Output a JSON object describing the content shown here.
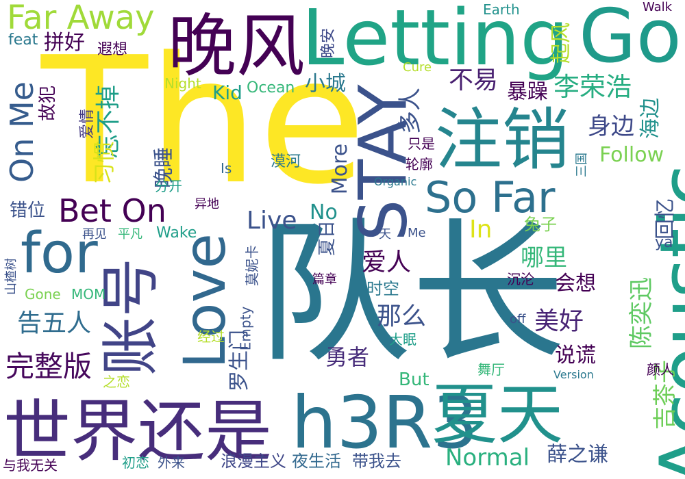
{
  "words": [
    {
      "text": "The",
      "color": "#fde725"
    },
    {
      "text": "队长",
      "color": "#2a768e"
    },
    {
      "text": "世界还是",
      "color": "#472d7b"
    },
    {
      "text": "h3R3",
      "color": "#2c738e"
    },
    {
      "text": "夏天",
      "color": "#21918c"
    },
    {
      "text": "Acoustic",
      "color": "#1f9e89"
    },
    {
      "text": "晚风",
      "color": "#440154"
    },
    {
      "text": "Letting",
      "color": "#20a486"
    },
    {
      "text": "Go",
      "color": "#1f9a8a"
    },
    {
      "text": "注销",
      "color": "#25858e"
    },
    {
      "text": "STAY",
      "color": "#3b528b"
    },
    {
      "text": "So Far",
      "color": "#2d708e"
    },
    {
      "text": "Love",
      "color": "#31688e"
    },
    {
      "text": "for",
      "color": "#306a8e"
    },
    {
      "text": "账号",
      "color": "#414487"
    },
    {
      "text": "Far Away",
      "color": "#a0da39"
    },
    {
      "text": "On Me",
      "color": "#365c8d"
    },
    {
      "text": "Bet On",
      "color": "#440154"
    },
    {
      "text": "李荣浩",
      "color": "#26ad81"
    },
    {
      "text": "完整版",
      "color": "#46085c"
    },
    {
      "text": "告五人",
      "color": "#2f6c8e"
    },
    {
      "text": "陈奕迅",
      "color": "#5ec962"
    },
    {
      "text": "吉茶子",
      "color": "#6ece58"
    },
    {
      "text": "美好",
      "color": "#482475"
    },
    {
      "text": "爱人",
      "color": "#440154"
    },
    {
      "text": "哪里",
      "color": "#35b779"
    },
    {
      "text": "身边",
      "color": "#3e4989"
    },
    {
      "text": "罗生门",
      "color": "#3b528b"
    },
    {
      "text": "那么",
      "color": "#3b528b"
    },
    {
      "text": "勇者",
      "color": "#472c7a"
    },
    {
      "text": "Normal",
      "color": "#2ab07f"
    },
    {
      "text": "In",
      "color": "#dde318"
    },
    {
      "text": "薛之谦",
      "color": "#3b528b"
    },
    {
      "text": "浪漫主义",
      "color": "#3f4788"
    },
    {
      "text": "夜生活",
      "color": "#31688e"
    },
    {
      "text": "带我去",
      "color": "#3b528b"
    },
    {
      "text": "Live",
      "color": "#3b528b"
    },
    {
      "text": "More",
      "color": "#3b528b"
    },
    {
      "text": "No",
      "color": "#21918c"
    },
    {
      "text": "Kid",
      "color": "#1f9e89"
    },
    {
      "text": "Ocean",
      "color": "#35b779"
    },
    {
      "text": "小城",
      "color": "#2a788e"
    },
    {
      "text": "不易",
      "color": "#481f70"
    },
    {
      "text": "多人",
      "color": "#3b528b"
    },
    {
      "text": "暴躁",
      "color": "#440154"
    },
    {
      "text": "忘不掉",
      "color": "#1f9e89"
    },
    {
      "text": "拼好",
      "color": "#440154"
    },
    {
      "text": "遐想",
      "color": "#440154"
    },
    {
      "text": "feat",
      "color": "#2a788e"
    },
    {
      "text": "故犯",
      "color": "#440154"
    },
    {
      "text": "习惯",
      "color": "#d8e219"
    },
    {
      "text": "晚睡",
      "color": "#3b528b"
    },
    {
      "text": "爱情",
      "color": "#443a83"
    },
    {
      "text": "Follow",
      "color": "#7ad151"
    },
    {
      "text": "海边",
      "color": "#21918c"
    },
    {
      "text": "起风",
      "color": "#b5de2b"
    },
    {
      "text": "晚安",
      "color": "#3e4989"
    },
    {
      "text": "Earth",
      "color": "#21918c"
    },
    {
      "text": "Walk",
      "color": "#440154"
    },
    {
      "text": "Cure",
      "color": "#b5de2b"
    },
    {
      "text": "Night",
      "color": "#b5de2b"
    },
    {
      "text": "Is",
      "color": "#31688e"
    },
    {
      "text": "漠河",
      "color": "#2a788e"
    },
    {
      "text": "分开",
      "color": "#1f9e89"
    },
    {
      "text": "Organic",
      "color": "#2a788e"
    },
    {
      "text": "轮廓",
      "color": "#440154"
    },
    {
      "text": "只是",
      "color": "#440154"
    },
    {
      "text": "三国",
      "color": "#2a788e"
    },
    {
      "text": "回忆",
      "color": "#3b528b"
    },
    {
      "text": "兔子",
      "color": "#7ad151"
    },
    {
      "text": "ya",
      "color": "#3b528b"
    },
    {
      "text": "会想",
      "color": "#440154"
    },
    {
      "text": "时空",
      "color": "#2a788e"
    },
    {
      "text": "夏日",
      "color": "#3b528b"
    },
    {
      "text": "说谎",
      "color": "#440154"
    },
    {
      "text": "错位",
      "color": "#3b528b"
    },
    {
      "text": "异地",
      "color": "#440154"
    },
    {
      "text": "再见",
      "color": "#3b528b"
    },
    {
      "text": "平凡",
      "color": "#35b779"
    },
    {
      "text": "Wake",
      "color": "#1f9e89"
    },
    {
      "text": "一天",
      "color": "#3b528b"
    },
    {
      "text": "Me",
      "color": "#3b528b"
    },
    {
      "text": "莫妮卡",
      "color": "#3b528b"
    },
    {
      "text": "山楂树",
      "color": "#3b528b"
    },
    {
      "text": "Gone",
      "color": "#7ad151"
    },
    {
      "text": "MOM",
      "color": "#35b779"
    },
    {
      "text": "篇章",
      "color": "#440154"
    },
    {
      "text": "沉沦",
      "color": "#440154"
    },
    {
      "text": "经过",
      "color": "#b5de2b"
    },
    {
      "text": "Empty",
      "color": "#3b528b"
    },
    {
      "text": "大眠",
      "color": "#1f9e89"
    },
    {
      "text": "off",
      "color": "#3b528b"
    },
    {
      "text": "But",
      "color": "#35b779"
    },
    {
      "text": "舞厅",
      "color": "#35b779"
    },
    {
      "text": "Version",
      "color": "#2a788e"
    },
    {
      "text": "颜人",
      "color": "#440154"
    },
    {
      "text": "之恋",
      "color": "#b5de2b"
    },
    {
      "text": "初恋",
      "color": "#1f9e89"
    },
    {
      "text": "外来",
      "color": "#3b528b"
    },
    {
      "text": "与我无关",
      "color": "#440154"
    }
  ]
}
